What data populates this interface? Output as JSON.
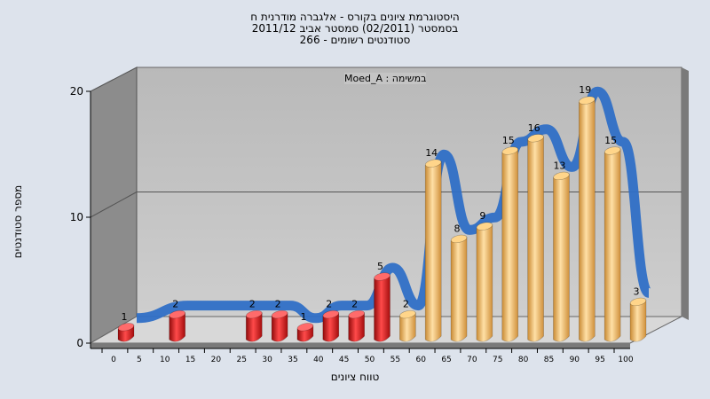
{
  "chart_data": {
    "type": "bar",
    "title_lines": [
      "היסטוגרמת ציונים בקורס - אלגברה מודרנית ח",
      "בסמסטר  (02/2011)  סמסטר אביב 2011/12",
      "266 - סטודנטים רשומים"
    ],
    "legend_text": "Moed_A : במשימה",
    "xlabel": "טווח ציונים",
    "ylabel": "מספר סטודנטים",
    "x_ticks": [
      "0",
      "5",
      "10",
      "15",
      "20",
      "25",
      "30",
      "35",
      "40",
      "45",
      "50",
      "55",
      "60",
      "65",
      "70",
      "75",
      "80",
      "85",
      "90",
      "95",
      "100"
    ],
    "y_ticks": [
      "0",
      "10",
      "20"
    ],
    "ylim": [
      0,
      20
    ],
    "categories": [
      0,
      10,
      25,
      30,
      35,
      40,
      45,
      50,
      55,
      60,
      65,
      70,
      75,
      80,
      85,
      90,
      95,
      100
    ],
    "values": [
      1,
      2,
      2,
      2,
      1,
      2,
      2,
      5,
      2,
      14,
      8,
      9,
      15,
      16,
      13,
      19,
      15,
      3
    ],
    "bar_colors": [
      "red",
      "red",
      "red",
      "red",
      "red",
      "red",
      "red",
      "red",
      "orange",
      "orange",
      "orange",
      "orange",
      "orange",
      "orange",
      "orange",
      "orange",
      "orange",
      "orange"
    ],
    "grid": true,
    "colors": {
      "red": "#e31a1a",
      "orange": "#f2b661",
      "ribbon": "#2f6fc6",
      "wall": "#c4c4c4",
      "side": "#8c8c8c"
    }
  }
}
